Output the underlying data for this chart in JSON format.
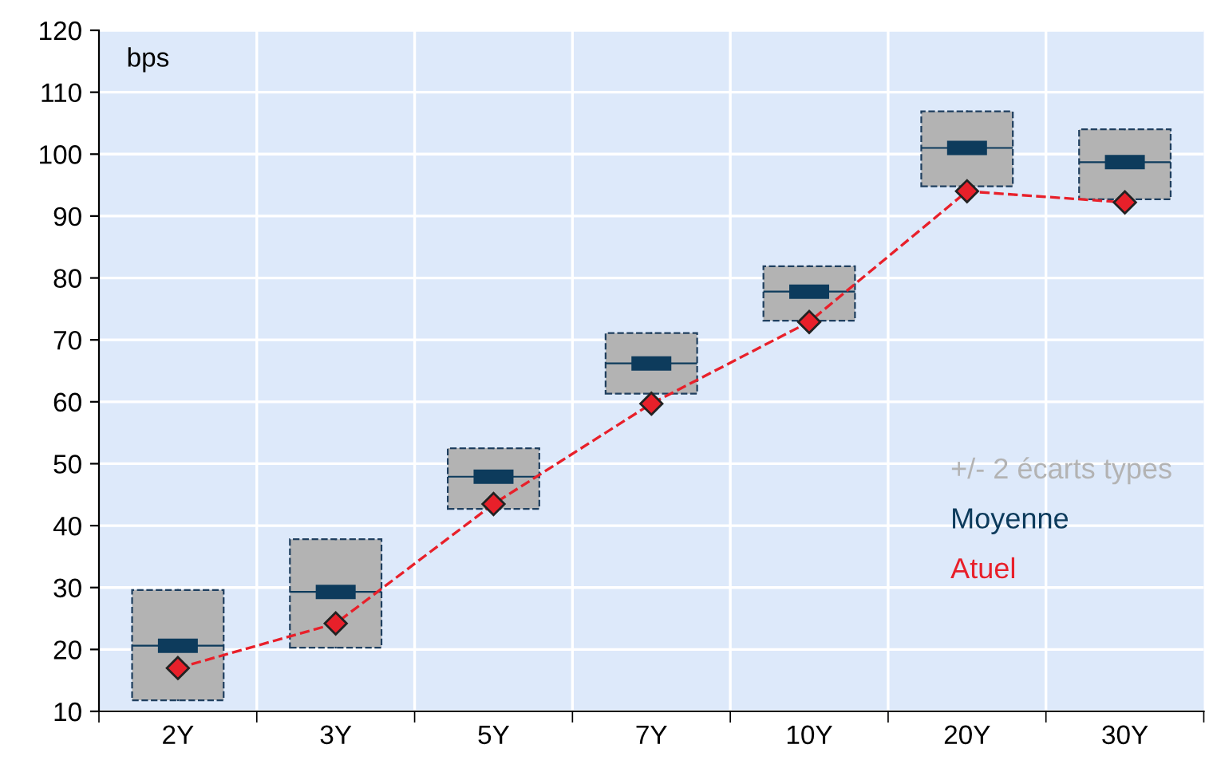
{
  "chart_data": {
    "type": "box",
    "ylabel": "bps",
    "categories": [
      "2Y",
      "3Y",
      "5Y",
      "7Y",
      "10Y",
      "20Y",
      "30Y"
    ],
    "ylim": [
      10,
      120
    ],
    "yticks": [
      10,
      20,
      30,
      40,
      50,
      60,
      70,
      80,
      90,
      100,
      110,
      120
    ],
    "grid": true,
    "legend": "right",
    "series": [
      {
        "name": "+/- 2 écarts types",
        "color": "#b3b3b3",
        "boxes": [
          {
            "low": 11.8,
            "q1": 11.8,
            "median": 20.6,
            "q3": 29.6,
            "high": 29.6
          },
          {
            "low": 20.3,
            "q1": 20.3,
            "median": 29.3,
            "q3": 37.8,
            "high": 37.8
          },
          {
            "low": 42.7,
            "q1": 42.7,
            "median": 47.9,
            "q3": 52.5,
            "high": 52.5
          },
          {
            "low": 61.3,
            "q1": 61.3,
            "median": 66.2,
            "q3": 71.1,
            "high": 71.1
          },
          {
            "low": 73.1,
            "q1": 73.1,
            "median": 77.8,
            "q3": 81.9,
            "high": 81.9
          },
          {
            "low": 94.8,
            "q1": 94.8,
            "median": 101,
            "q3": 106.9,
            "high": 106.9
          },
          {
            "low": 92.7,
            "q1": 92.7,
            "median": 98.7,
            "q3": 104,
            "high": 104
          }
        ]
      },
      {
        "name": "Moyenne",
        "type": "scatter",
        "color": "#0d3b5c",
        "x": [
          "2Y",
          "3Y",
          "5Y",
          "7Y",
          "10Y",
          "20Y",
          "30Y"
        ],
        "values": [
          20.6,
          29.3,
          47.9,
          66.2,
          77.8,
          101,
          98.7
        ]
      },
      {
        "name": "Atuel",
        "type": "line",
        "color": "#e8202a",
        "marker": "diamond",
        "line_style": "dashed",
        "values": [
          17,
          24.2,
          43.5,
          59.7,
          72.9,
          94,
          92.2
        ]
      }
    ]
  }
}
